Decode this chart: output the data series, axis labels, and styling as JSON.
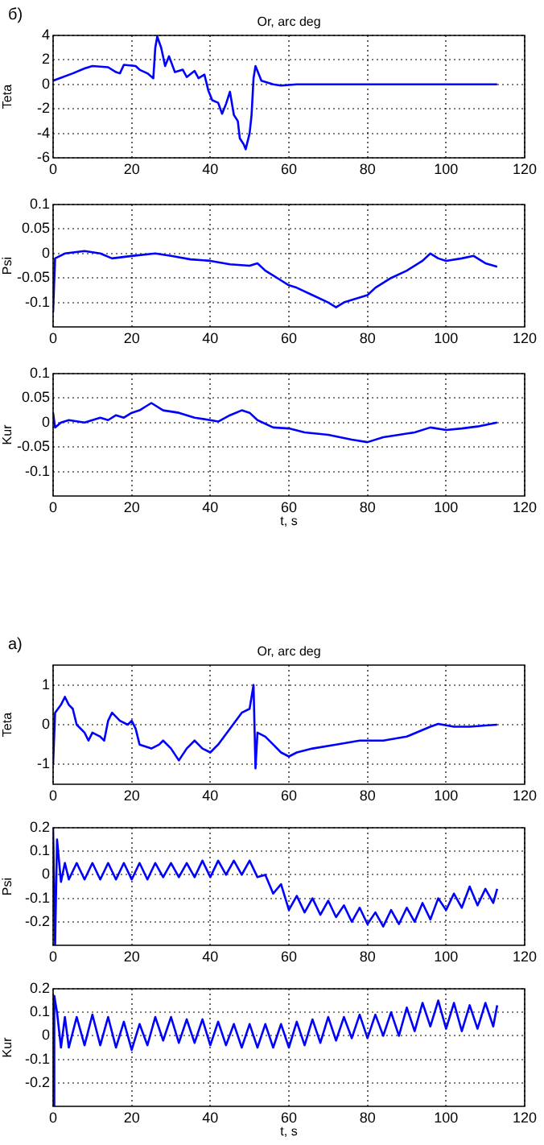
{
  "chart_data": [
    {
      "type": "line",
      "title": "Or, arc deg",
      "annotations": [
        "б)"
      ],
      "ylabel": "Teta",
      "color": "#0000ff",
      "grid": true,
      "xlim": [
        0,
        120
      ],
      "xticks": [
        0,
        20,
        40,
        60,
        80,
        100,
        120
      ],
      "ylim": [
        -6,
        4
      ],
      "yticks": [
        -6,
        -4,
        -2,
        0,
        2,
        4
      ],
      "x": [
        0,
        5,
        8,
        10,
        14,
        16,
        17,
        18,
        21,
        22,
        24,
        25.5,
        26,
        26.5,
        27.5,
        28.5,
        29.5,
        31,
        33,
        34,
        36,
        37,
        38.5,
        39.5,
        40.5,
        42,
        43,
        44,
        45,
        46,
        47,
        47.5,
        48.5,
        49,
        50,
        50.5,
        51,
        51.5,
        53,
        56,
        58,
        62,
        70,
        80,
        90,
        100,
        108,
        113
      ],
      "values": [
        0.3,
        0.9,
        1.3,
        1.5,
        1.4,
        1.0,
        0.9,
        1.6,
        1.5,
        1.2,
        0.9,
        0.5,
        3.0,
        3.9,
        3.0,
        1.5,
        2.3,
        1.0,
        1.2,
        0.6,
        1.1,
        0.5,
        0.8,
        -0.5,
        -1.3,
        -1.5,
        -2.4,
        -1.6,
        -0.6,
        -2.5,
        -3.0,
        -4.4,
        -4.9,
        -5.3,
        -4.0,
        -2.5,
        0.5,
        1.5,
        0.3,
        0,
        -0.1,
        0,
        0,
        0,
        0,
        0,
        0,
        0
      ]
    },
    {
      "type": "line",
      "ylabel": "Psi",
      "color": "#0000ff",
      "grid": true,
      "xlim": [
        0,
        120
      ],
      "xticks": [
        0,
        20,
        40,
        60,
        80,
        100,
        120
      ],
      "ylim": [
        -0.15,
        0.1
      ],
      "yticks": [
        -0.1,
        -0.05,
        0,
        0.05,
        0.1
      ],
      "x": [
        0,
        0.5,
        3,
        8,
        12,
        15,
        20,
        26,
        30,
        35,
        40,
        45,
        50,
        52,
        54,
        56,
        58,
        60,
        62,
        66,
        70,
        72,
        74,
        78,
        80,
        82,
        86,
        90,
        94,
        96,
        98,
        100,
        104,
        107,
        110,
        113
      ],
      "values": [
        -0.12,
        -0.01,
        0,
        0.005,
        0,
        -0.01,
        -0.005,
        0,
        -0.005,
        -0.012,
        -0.015,
        -0.022,
        -0.025,
        -0.02,
        -0.035,
        -0.045,
        -0.055,
        -0.065,
        -0.07,
        -0.085,
        -0.1,
        -0.11,
        -0.1,
        -0.09,
        -0.085,
        -0.07,
        -0.05,
        -0.035,
        -0.015,
        0,
        -0.01,
        -0.015,
        -0.01,
        -0.005,
        -0.02,
        -0.027
      ]
    },
    {
      "type": "line",
      "xlabel": "t, s",
      "ylabel": "Kur",
      "color": "#0000ff",
      "grid": true,
      "xlim": [
        0,
        120
      ],
      "xticks": [
        0,
        20,
        40,
        60,
        80,
        100,
        120
      ],
      "ylim": [
        -0.15,
        0.1
      ],
      "yticks": [
        -0.1,
        -0.05,
        0,
        0.05,
        0.1
      ],
      "x": [
        0,
        0.5,
        2,
        4,
        8,
        12,
        14,
        16,
        18,
        20,
        22,
        24,
        25,
        28,
        32,
        36,
        40,
        42,
        45,
        48,
        50,
        52,
        56,
        60,
        64,
        70,
        76,
        80,
        84,
        88,
        92,
        96,
        100,
        104,
        108,
        113
      ],
      "values": [
        0.02,
        -0.01,
        0,
        0.005,
        0,
        0.01,
        0.005,
        0.015,
        0.01,
        0.02,
        0.025,
        0.035,
        0.04,
        0.025,
        0.02,
        0.01,
        0.005,
        0.002,
        0.015,
        0.025,
        0.02,
        0.005,
        -0.01,
        -0.012,
        -0.02,
        -0.025,
        -0.035,
        -0.04,
        -0.03,
        -0.025,
        -0.02,
        -0.01,
        -0.015,
        -0.012,
        -0.008,
        0
      ]
    },
    {
      "type": "line",
      "title": "Or, arc deg",
      "annotations": [
        "а)"
      ],
      "ylabel": "Teta",
      "color": "#0000ff",
      "grid": true,
      "xlim": [
        0,
        120
      ],
      "xticks": [
        0,
        20,
        40,
        60,
        80,
        100,
        120
      ],
      "ylim": [
        -1.5,
        1.5
      ],
      "yticks": [
        -1,
        0,
        1
      ],
      "x": [
        0,
        0.5,
        2,
        3,
        4,
        5,
        6,
        8,
        9,
        10,
        12,
        13,
        14,
        15,
        17,
        19,
        20,
        21,
        22,
        25,
        27,
        28,
        30,
        32,
        34,
        36,
        38,
        40,
        42,
        45,
        48,
        50,
        51,
        51.5,
        52,
        54,
        56,
        58,
        60,
        62,
        66,
        72,
        78,
        84,
        90,
        96,
        98,
        102,
        106,
        110,
        113
      ],
      "values": [
        -1,
        0.3,
        0.5,
        0.7,
        0.5,
        0.4,
        0,
        -0.2,
        -0.4,
        -0.2,
        -0.3,
        -0.4,
        0.1,
        0.3,
        0.1,
        0,
        0.1,
        -0.1,
        -0.5,
        -0.6,
        -0.5,
        -0.4,
        -0.6,
        -0.9,
        -0.6,
        -0.4,
        -0.6,
        -0.7,
        -0.5,
        -0.1,
        0.3,
        0.4,
        1.0,
        -1.1,
        -0.2,
        -0.3,
        -0.5,
        -0.7,
        -0.8,
        -0.7,
        -0.6,
        -0.5,
        -0.4,
        -0.4,
        -0.3,
        -0.05,
        0.02,
        -0.05,
        -0.05,
        -0.02,
        0
      ]
    },
    {
      "type": "line",
      "ylabel": "Psi",
      "color": "#0000ff",
      "grid": true,
      "xlim": [
        0,
        120
      ],
      "xticks": [
        0,
        20,
        40,
        60,
        80,
        100,
        120
      ],
      "ylim": [
        -0.3,
        0.2
      ],
      "yticks": [
        -0.2,
        -0.1,
        0,
        0.1,
        0.2
      ],
      "x": [
        0,
        0.5,
        1,
        2,
        3,
        4,
        6,
        8,
        10,
        12,
        14,
        16,
        18,
        20,
        22,
        24,
        26,
        28,
        30,
        32,
        34,
        36,
        38,
        40,
        42,
        44,
        46,
        48,
        50,
        52,
        54,
        56,
        58,
        60,
        62,
        64,
        66,
        68,
        70,
        72,
        74,
        76,
        78,
        80,
        82,
        84,
        86,
        88,
        90,
        92,
        94,
        96,
        98,
        100,
        102,
        104,
        106,
        108,
        110,
        112,
        113
      ],
      "values": [
        0.2,
        -0.3,
        0.15,
        -0.03,
        0.05,
        -0.02,
        0.05,
        -0.02,
        0.05,
        -0.02,
        0.05,
        -0.02,
        0.05,
        -0.02,
        0.05,
        -0.02,
        0.05,
        -0.01,
        0.05,
        -0.01,
        0.05,
        -0.01,
        0.06,
        -0.01,
        0.06,
        0,
        0.06,
        0,
        0.06,
        -0.01,
        0,
        -0.08,
        -0.04,
        -0.15,
        -0.09,
        -0.16,
        -0.1,
        -0.17,
        -0.11,
        -0.18,
        -0.13,
        -0.2,
        -0.14,
        -0.21,
        -0.16,
        -0.22,
        -0.15,
        -0.21,
        -0.14,
        -0.2,
        -0.12,
        -0.19,
        -0.1,
        -0.15,
        -0.08,
        -0.14,
        -0.05,
        -0.13,
        -0.06,
        -0.12,
        -0.06
      ]
    },
    {
      "type": "line",
      "xlabel": "t, s",
      "ylabel": "Kur",
      "color": "#0000ff",
      "grid": true,
      "xlim": [
        0,
        120
      ],
      "xticks": [
        0,
        20,
        40,
        60,
        80,
        100,
        120
      ],
      "ylim": [
        -0.3,
        0.2
      ],
      "yticks": [
        -0.2,
        -0.1,
        0,
        0.1,
        0.2
      ],
      "x": [
        0,
        0.3,
        1,
        2,
        3,
        4,
        6,
        8,
        10,
        12,
        14,
        16,
        18,
        20,
        22,
        24,
        26,
        28,
        30,
        32,
        34,
        36,
        38,
        40,
        42,
        44,
        46,
        48,
        50,
        52,
        54,
        56,
        58,
        60,
        62,
        64,
        66,
        68,
        70,
        72,
        74,
        76,
        78,
        80,
        82,
        84,
        86,
        88,
        90,
        92,
        94,
        96,
        98,
        100,
        102,
        104,
        106,
        108,
        110,
        112,
        113
      ],
      "values": [
        -0.3,
        0.17,
        0.1,
        -0.05,
        0.08,
        -0.05,
        0.08,
        -0.04,
        0.09,
        -0.04,
        0.08,
        -0.05,
        0.06,
        -0.06,
        0.05,
        -0.04,
        0.08,
        -0.02,
        0.08,
        -0.03,
        0.07,
        -0.03,
        0.07,
        -0.04,
        0.06,
        -0.04,
        0.05,
        -0.05,
        0.05,
        -0.05,
        0.05,
        -0.05,
        0.05,
        -0.05,
        0.06,
        -0.04,
        0.07,
        -0.03,
        0.08,
        -0.02,
        0.08,
        -0.01,
        0.09,
        -0.01,
        0.09,
        0,
        0.1,
        0,
        0.12,
        0.02,
        0.14,
        0.04,
        0.15,
        0.03,
        0.14,
        0.02,
        0.13,
        0.03,
        0.14,
        0.04,
        0.13
      ]
    }
  ]
}
